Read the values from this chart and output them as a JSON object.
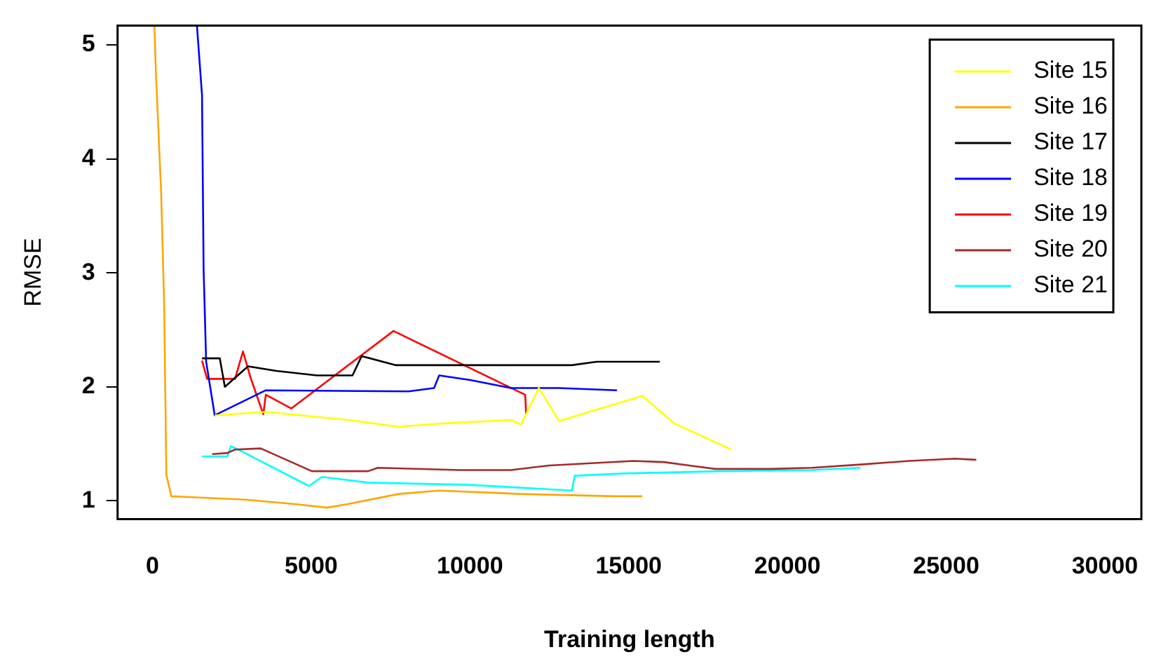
{
  "chart_data": {
    "type": "line",
    "xlabel": "Training length",
    "ylabel": "RMSE",
    "xlim": [
      -1100,
      31150
    ],
    "ylim": [
      0.84,
      5.17
    ],
    "xticks": [
      0,
      5000,
      10000,
      15000,
      20000,
      25000,
      30000
    ],
    "yticks": [
      1,
      2,
      3,
      4,
      5
    ],
    "grid": false,
    "legend": "top right",
    "marker": "none",
    "line_style": "solid",
    "series": [
      {
        "name": "Site 15",
        "color": "#ffff00",
        "x": [
          1960,
          3570,
          6140,
          7750,
          9200,
          11290,
          11610,
          12170,
          12810,
          15430,
          16430,
          18230
        ],
        "values": [
          1.75,
          1.78,
          1.71,
          1.65,
          1.68,
          1.71,
          1.67,
          1.99,
          1.7,
          1.92,
          1.68,
          1.45
        ]
      },
      {
        "name": "Site 16",
        "color": "#ffa500",
        "x": [
          60,
          110,
          270,
          370,
          435,
          595,
          2930,
          4530,
          5500,
          6130,
          7750,
          9030,
          11600,
          14570,
          15430
        ],
        "values": [
          5.17,
          4.74,
          3.72,
          2.7,
          1.23,
          1.04,
          1.01,
          0.97,
          0.94,
          0.97,
          1.06,
          1.09,
          1.06,
          1.04,
          1.04
        ]
      },
      {
        "name": "Site 17",
        "color": "#000000",
        "x": [
          1560,
          2120,
          2280,
          3010,
          3890,
          5180,
          6300,
          6590,
          7670,
          13210,
          13990,
          15980
        ],
        "values": [
          2.25,
          2.25,
          2.0,
          2.18,
          2.14,
          2.1,
          2.1,
          2.27,
          2.19,
          2.19,
          2.22,
          2.22
        ]
      },
      {
        "name": "Site 18",
        "color": "#0000ff",
        "x": [
          1400,
          1560,
          1610,
          1690,
          1960,
          3570,
          8070,
          8870,
          9030,
          10000,
          11290,
          12810,
          14630
        ],
        "values": [
          5.17,
          4.56,
          3.03,
          2.22,
          1.75,
          1.97,
          1.96,
          1.99,
          2.1,
          2.06,
          1.99,
          1.99,
          1.97
        ]
      },
      {
        "name": "Site 19",
        "color": "#ff0000",
        "x": [
          1560,
          1720,
          2600,
          2850,
          3090,
          3490,
          3570,
          4370,
          7590,
          11740,
          11770
        ],
        "values": [
          2.23,
          2.07,
          2.07,
          2.31,
          2.08,
          1.76,
          1.93,
          1.81,
          2.49,
          1.93,
          1.76
        ]
      },
      {
        "name": "Site 20",
        "color": "#a52a2a",
        "x": [
          1880,
          2360,
          2600,
          3410,
          5020,
          6790,
          7100,
          9680,
          11290,
          12490,
          15140,
          16110,
          16910,
          17720,
          19480,
          20770,
          22380,
          23830,
          25270,
          25950
        ],
        "values": [
          1.41,
          1.42,
          1.45,
          1.46,
          1.26,
          1.26,
          1.29,
          1.27,
          1.27,
          1.31,
          1.35,
          1.34,
          1.31,
          1.28,
          1.28,
          1.29,
          1.32,
          1.35,
          1.37,
          1.36
        ]
      },
      {
        "name": "Site 21",
        "color": "#00ffff",
        "x": [
          1560,
          2360,
          2470,
          2770,
          4930,
          5340,
          6790,
          10000,
          13210,
          13300,
          14820,
          17880,
          20770,
          22300
        ],
        "values": [
          1.39,
          1.39,
          1.48,
          1.44,
          1.13,
          1.21,
          1.16,
          1.14,
          1.09,
          1.22,
          1.24,
          1.26,
          1.27,
          1.29
        ]
      }
    ]
  }
}
